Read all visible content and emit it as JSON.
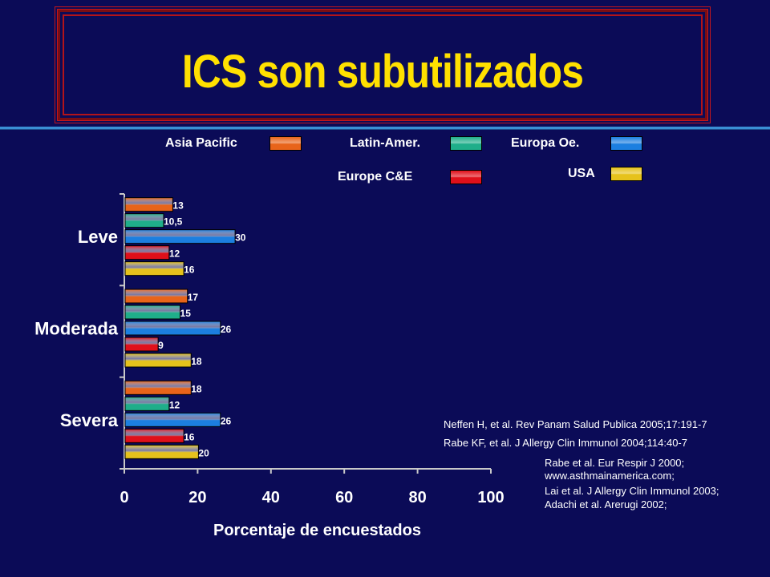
{
  "slide": {
    "title": "ICS son subutilizados"
  },
  "legend": [
    {
      "label": "Asia Pacific",
      "color": "#e8641a"
    },
    {
      "label": "Latin-Amer.",
      "color": "#1fae8a"
    },
    {
      "label": "Europa Oe.",
      "color": "#1c7fe0"
    },
    {
      "label": "Europe C&E",
      "color": "#e0101a"
    },
    {
      "label": "USA",
      "color": "#e6c21c"
    }
  ],
  "references": {
    "line1": "Neffen H, et al. Rev Panam Salud Publica 2005;17:191-7",
    "line2": "Rabe KF, et al. J Allergy Clin Immunol 2004;114:40-7",
    "line3": "Rabe et al. Eur Respir J 2000;",
    "line4": "www.asthmainamerica.com;",
    "line5": "Lai et al. J Allergy Clin Immunol 2003;",
    "line6": "Adachi et al. Arerugi 2002;"
  },
  "chart_data": {
    "type": "bar",
    "orientation": "horizontal",
    "categories": [
      "Leve",
      "Moderada",
      "Severa"
    ],
    "series": [
      {
        "name": "Asia Pacific",
        "values": [
          13,
          17,
          18
        ],
        "labels": [
          "13",
          "17",
          "18"
        ]
      },
      {
        "name": "Latin-Amer.",
        "values": [
          10.5,
          15,
          12
        ],
        "labels": [
          "10,5",
          "15",
          "12"
        ]
      },
      {
        "name": "Europa Oe.",
        "values": [
          30,
          26,
          26
        ],
        "labels": [
          "30",
          "26",
          "26"
        ]
      },
      {
        "name": "Europe C&E",
        "values": [
          12,
          9,
          16
        ],
        "labels": [
          "12",
          "9",
          "16"
        ]
      },
      {
        "name": "USA",
        "values": [
          16,
          18,
          20
        ],
        "labels": [
          "16",
          "18",
          "20"
        ]
      }
    ],
    "xlabel": "Porcentaje de encuestados",
    "xlim": [
      0,
      100
    ],
    "xticks": [
      "0",
      "20",
      "40",
      "60",
      "80",
      "100"
    ],
    "grid": false,
    "legend_position": "top"
  }
}
